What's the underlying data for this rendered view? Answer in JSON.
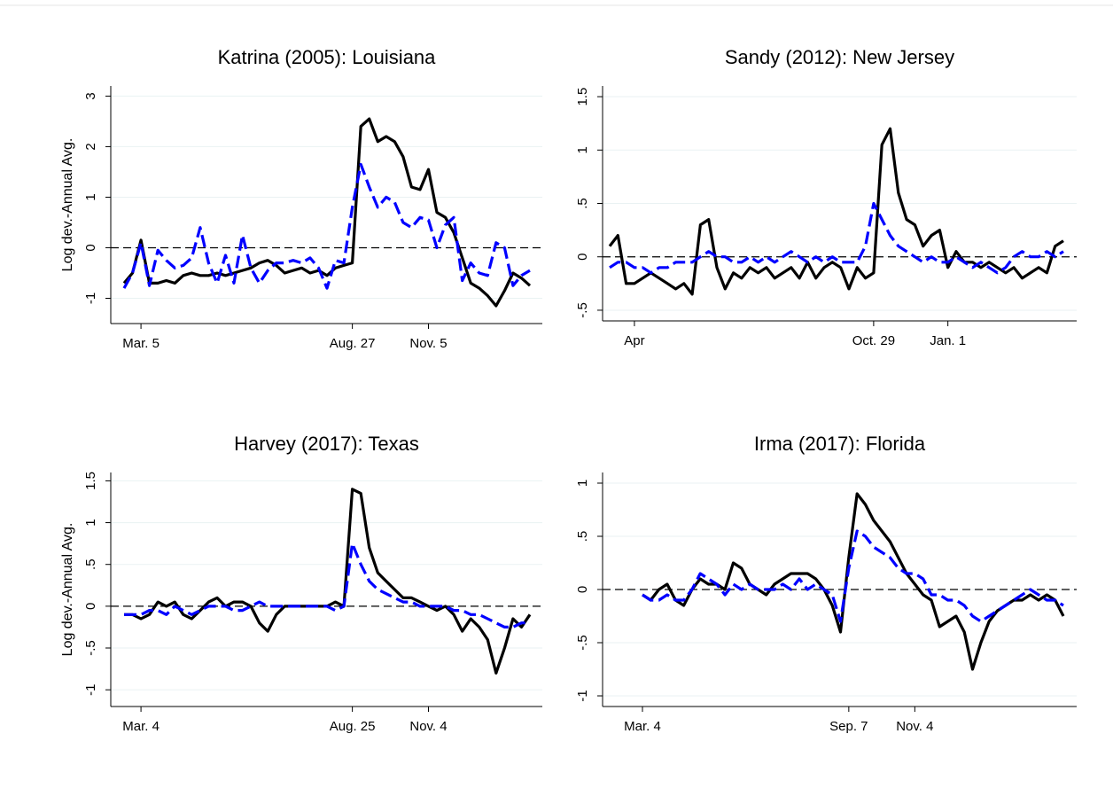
{
  "chart_data": [
    {
      "type": "line",
      "title": "Katrina (2005): Louisiana",
      "ylabel": "Log dev.-Annual Avg.",
      "categories": [
        null,
        null,
        "Mar. 5",
        null,
        null,
        null,
        null,
        null,
        null,
        null,
        null,
        null,
        null,
        null,
        null,
        null,
        null,
        null,
        null,
        null,
        null,
        null,
        null,
        null,
        null,
        null,
        null,
        "Aug. 27",
        null,
        null,
        null,
        null,
        null,
        null,
        null,
        null,
        "Nov. 5",
        null,
        null,
        null,
        null,
        null,
        null,
        null,
        null,
        null,
        null,
        null,
        null
      ],
      "series": [
        {
          "color": "#000000",
          "values": [
            -0.7,
            -0.5,
            0.15,
            -0.7,
            -0.7,
            -0.65,
            -0.7,
            -0.55,
            -0.5,
            -0.55,
            -0.55,
            -0.5,
            -0.55,
            -0.5,
            -0.45,
            -0.4,
            -0.3,
            -0.25,
            -0.35,
            -0.5,
            -0.45,
            -0.4,
            -0.5,
            -0.45,
            -0.55,
            -0.4,
            -0.35,
            -0.3,
            2.4,
            2.55,
            2.1,
            2.2,
            2.1,
            1.8,
            1.2,
            1.15,
            1.55,
            0.7,
            0.6,
            0.3,
            -0.2,
            -0.7,
            -0.8,
            -0.95,
            -1.15,
            -0.85,
            -0.5,
            -0.6,
            -0.75
          ]
        },
        {
          "color": "#0000ff",
          "dash": true,
          "values": [
            -0.8,
            -0.5,
            0.1,
            -0.75,
            -0.05,
            -0.25,
            -0.4,
            -0.35,
            -0.2,
            0.4,
            -0.3,
            -0.7,
            -0.15,
            -0.7,
            0.25,
            -0.4,
            -0.7,
            -0.45,
            -0.3,
            -0.3,
            -0.25,
            -0.3,
            -0.2,
            -0.4,
            -0.8,
            -0.25,
            -0.3,
            0.8,
            1.65,
            1.2,
            0.8,
            1.0,
            0.9,
            0.5,
            0.4,
            0.6,
            0.55,
            0.0,
            0.45,
            0.6,
            -0.65,
            -0.3,
            -0.5,
            -0.55,
            0.1,
            0.0,
            -0.75,
            -0.55,
            -0.45
          ]
        }
      ],
      "ylim": [
        -1.5,
        3.2
      ],
      "yticks": [
        -1,
        0,
        1,
        2,
        3
      ],
      "grid": true,
      "hline": 0
    },
    {
      "type": "line",
      "title": "Sandy (2012): New Jersey",
      "categories": [
        null,
        null,
        null,
        "Apr",
        null,
        null,
        null,
        null,
        null,
        null,
        null,
        null,
        null,
        null,
        null,
        null,
        null,
        null,
        null,
        null,
        null,
        null,
        null,
        null,
        null,
        null,
        null,
        null,
        null,
        null,
        null,
        null,
        "Oct. 29",
        null,
        null,
        null,
        null,
        null,
        null,
        null,
        null,
        "Jan. 1",
        null,
        null,
        null,
        null,
        null,
        null,
        null,
        null,
        null,
        null,
        null,
        null,
        null,
        null
      ],
      "series": [
        {
          "color": "#000000",
          "values": [
            0.1,
            0.2,
            -0.25,
            -0.25,
            -0.2,
            -0.15,
            -0.2,
            -0.25,
            -0.3,
            -0.25,
            -0.35,
            0.3,
            0.35,
            -0.1,
            -0.3,
            -0.15,
            -0.2,
            -0.1,
            -0.15,
            -0.1,
            -0.2,
            -0.15,
            -0.1,
            -0.2,
            -0.05,
            -0.2,
            -0.1,
            -0.05,
            -0.1,
            -0.3,
            -0.1,
            -0.2,
            -0.15,
            1.05,
            1.2,
            0.6,
            0.35,
            0.3,
            0.1,
            0.2,
            0.25,
            -0.1,
            0.05,
            -0.05,
            -0.05,
            -0.1,
            -0.05,
            -0.1,
            -0.15,
            -0.1,
            -0.2,
            -0.15,
            -0.1,
            -0.15,
            0.1,
            0.15
          ]
        },
        {
          "color": "#0000ff",
          "dash": true,
          "values": [
            -0.1,
            -0.05,
            -0.05,
            -0.1,
            -0.1,
            -0.15,
            -0.1,
            -0.1,
            -0.05,
            -0.05,
            -0.05,
            0.0,
            0.05,
            0.0,
            0.0,
            -0.05,
            -0.05,
            0.0,
            -0.05,
            0.0,
            -0.05,
            0.0,
            0.05,
            0.0,
            -0.05,
            0.0,
            -0.05,
            0.0,
            -0.05,
            -0.05,
            -0.05,
            0.1,
            0.5,
            0.35,
            0.2,
            0.1,
            0.05,
            0.0,
            -0.05,
            0.0,
            -0.05,
            -0.05,
            0.0,
            -0.05,
            -0.1,
            -0.05,
            -0.1,
            -0.15,
            -0.1,
            0.0,
            0.05,
            0.0,
            0.0,
            0.05,
            0.0,
            0.05
          ]
        }
      ],
      "ylim": [
        -0.6,
        1.6
      ],
      "yticks": [
        {
          "value": -0.5,
          "label": "-.5"
        },
        0,
        {
          "value": 0.5,
          "label": ".5"
        },
        1,
        1.5
      ],
      "grid": true,
      "hline": 0
    },
    {
      "type": "line",
      "title": "Harvey (2017): Texas",
      "ylabel": "Log dev.-Annual Avg.",
      "categories": [
        null,
        null,
        "Mar. 4",
        null,
        null,
        null,
        null,
        null,
        null,
        null,
        null,
        null,
        null,
        null,
        null,
        null,
        null,
        null,
        null,
        null,
        null,
        null,
        null,
        null,
        null,
        null,
        null,
        "Aug. 25",
        null,
        null,
        null,
        null,
        null,
        null,
        null,
        null,
        "Nov. 4",
        null,
        null,
        null,
        null,
        null,
        null,
        null,
        null,
        null,
        null,
        null,
        null
      ],
      "series": [
        {
          "color": "#000000",
          "values": [
            -0.1,
            -0.1,
            -0.15,
            -0.1,
            0.05,
            0.0,
            0.05,
            -0.1,
            -0.15,
            -0.05,
            0.05,
            0.1,
            0.0,
            0.05,
            0.05,
            0.0,
            -0.2,
            -0.3,
            -0.1,
            0.0,
            0.0,
            0.0,
            0.0,
            0.0,
            0.0,
            0.05,
            0.0,
            1.4,
            1.35,
            0.7,
            0.4,
            0.3,
            0.2,
            0.1,
            0.1,
            0.05,
            0.0,
            -0.05,
            0.0,
            -0.1,
            -0.3,
            -0.15,
            -0.25,
            -0.4,
            -0.8,
            -0.5,
            -0.15,
            -0.25,
            -0.1
          ]
        },
        {
          "color": "#0000ff",
          "dash": true,
          "values": [
            -0.1,
            -0.1,
            -0.1,
            -0.05,
            -0.05,
            -0.1,
            0.0,
            -0.05,
            -0.1,
            -0.05,
            0.0,
            0.0,
            0.0,
            -0.05,
            -0.05,
            0.0,
            0.05,
            0.0,
            0.0,
            0.0,
            0.0,
            0.0,
            0.0,
            0.0,
            0.0,
            -0.05,
            0.0,
            0.75,
            0.5,
            0.3,
            0.2,
            0.15,
            0.1,
            0.05,
            0.05,
            0.0,
            0.0,
            0.0,
            0.0,
            -0.05,
            -0.05,
            -0.1,
            -0.1,
            -0.15,
            -0.2,
            -0.25,
            -0.25,
            -0.2,
            -0.2
          ]
        }
      ],
      "ylim": [
        -1.2,
        1.6
      ],
      "yticks": [
        -1,
        {
          "value": -0.5,
          "label": "-.5"
        },
        0,
        {
          "value": 0.5,
          "label": ".5"
        },
        1,
        1.5
      ],
      "grid": true,
      "hline": 0
    },
    {
      "type": "line",
      "title": "Irma (2017): Florida",
      "categories": [
        "Mar. 4",
        null,
        null,
        null,
        null,
        null,
        null,
        null,
        null,
        null,
        null,
        null,
        null,
        null,
        null,
        null,
        null,
        null,
        null,
        null,
        null,
        null,
        null,
        null,
        null,
        "Sep. 7",
        null,
        null,
        null,
        null,
        null,
        null,
        null,
        "Nov. 4",
        null,
        null,
        null,
        null,
        null,
        null,
        null,
        null,
        null,
        null,
        null,
        null,
        null,
        null,
        null,
        null,
        null,
        null
      ],
      "series": [
        {
          "color": "#000000",
          "values": [
            -0.05,
            -0.1,
            0.0,
            0.05,
            -0.1,
            -0.15,
            0.0,
            0.1,
            0.05,
            0.05,
            0.0,
            0.25,
            0.2,
            0.05,
            0.0,
            -0.05,
            0.05,
            0.1,
            0.15,
            0.15,
            0.15,
            0.1,
            0.0,
            -0.15,
            -0.4,
            0.3,
            0.9,
            0.8,
            0.65,
            0.55,
            0.45,
            0.3,
            0.15,
            0.05,
            -0.05,
            -0.1,
            -0.35,
            -0.3,
            -0.25,
            -0.4,
            -0.75,
            -0.5,
            -0.3,
            -0.2,
            -0.15,
            -0.1,
            -0.1,
            -0.05,
            -0.1,
            -0.05,
            -0.1,
            -0.25
          ]
        },
        {
          "color": "#0000ff",
          "dash": true,
          "values": [
            -0.05,
            -0.1,
            -0.1,
            -0.05,
            -0.1,
            -0.1,
            0.0,
            0.15,
            0.1,
            0.05,
            -0.05,
            0.05,
            0.0,
            0.05,
            0.0,
            0.0,
            0.0,
            0.05,
            0.0,
            0.1,
            0.0,
            0.05,
            0.0,
            -0.05,
            -0.3,
            0.2,
            0.55,
            0.5,
            0.4,
            0.35,
            0.3,
            0.2,
            0.15,
            0.15,
            0.1,
            -0.05,
            -0.05,
            -0.1,
            -0.1,
            -0.15,
            -0.25,
            -0.3,
            -0.25,
            -0.2,
            -0.15,
            -0.1,
            -0.05,
            0.0,
            -0.05,
            -0.1,
            -0.1,
            -0.15
          ]
        }
      ],
      "ylim": [
        -1.1,
        1.1
      ],
      "yticks": [
        -1,
        {
          "value": -0.5,
          "label": "-.5"
        },
        0,
        {
          "value": 0.5,
          "label": ".5"
        },
        1
      ],
      "grid": true,
      "hline": 0
    }
  ]
}
